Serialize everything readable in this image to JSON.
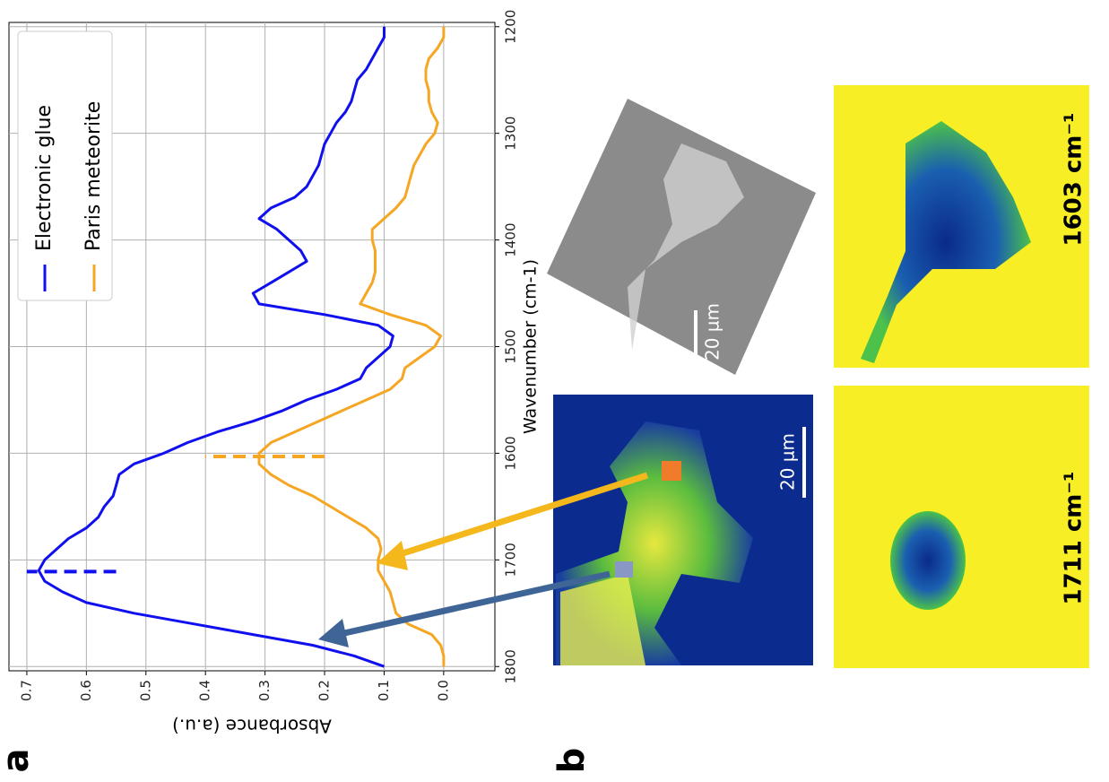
{
  "chart_data": {
    "type": "line",
    "xlabel": "Wavenumber (cm-1)",
    "ylabel": "Absorbance (a.u.)",
    "x": [
      1800,
      1790,
      1780,
      1770,
      1760,
      1750,
      1740,
      1730,
      1720,
      1710,
      1700,
      1690,
      1680,
      1670,
      1660,
      1650,
      1640,
      1630,
      1620,
      1610,
      1600,
      1590,
      1580,
      1570,
      1560,
      1550,
      1540,
      1530,
      1520,
      1510,
      1500,
      1490,
      1480,
      1470,
      1460,
      1450,
      1440,
      1430,
      1420,
      1410,
      1400,
      1390,
      1380,
      1370,
      1360,
      1350,
      1340,
      1330,
      1320,
      1310,
      1300,
      1290,
      1280,
      1270,
      1260,
      1250,
      1240,
      1230,
      1220,
      1210,
      1200
    ],
    "series": [
      {
        "name": "Electronic glue",
        "color": "#1010ee",
        "values": [
          0.1,
          0.15,
          0.22,
          0.32,
          0.42,
          0.52,
          0.6,
          0.64,
          0.67,
          0.68,
          0.67,
          0.65,
          0.63,
          0.6,
          0.58,
          0.57,
          0.555,
          0.55,
          0.545,
          0.52,
          0.47,
          0.43,
          0.38,
          0.32,
          0.27,
          0.23,
          0.18,
          0.14,
          0.13,
          0.11,
          0.09,
          0.085,
          0.11,
          0.2,
          0.31,
          0.32,
          0.29,
          0.26,
          0.23,
          0.24,
          0.26,
          0.28,
          0.31,
          0.29,
          0.25,
          0.23,
          0.22,
          0.21,
          0.205,
          0.2,
          0.19,
          0.18,
          0.165,
          0.155,
          0.15,
          0.145,
          0.13,
          0.12,
          0.11,
          0.1,
          0.1
        ]
      },
      {
        "name": "Paris meteorite",
        "color": "#f5a623",
        "values": [
          0.0,
          0.0,
          0.005,
          0.02,
          0.06,
          0.08,
          0.085,
          0.09,
          0.1,
          0.11,
          0.11,
          0.105,
          0.11,
          0.13,
          0.16,
          0.19,
          0.22,
          0.26,
          0.29,
          0.31,
          0.31,
          0.29,
          0.25,
          0.21,
          0.17,
          0.13,
          0.09,
          0.07,
          0.065,
          0.04,
          0.015,
          0.005,
          0.03,
          0.09,
          0.14,
          0.13,
          0.12,
          0.115,
          0.115,
          0.115,
          0.12,
          0.12,
          0.1,
          0.08,
          0.065,
          0.06,
          0.055,
          0.05,
          0.04,
          0.03,
          0.015,
          0.01,
          0.02,
          0.025,
          0.025,
          0.03,
          0.03,
          0.025,
          0.01,
          0.0,
          0.0
        ]
      }
    ],
    "markers": [
      {
        "x": 1711,
        "ymin": 0.55,
        "ymax": 0.7,
        "color": "#1010ee"
      },
      {
        "x": 1603,
        "ymin": 0.2,
        "ymax": 0.4,
        "color": "#f5a623"
      }
    ],
    "xlim": [
      1804,
      1196
    ],
    "ylim": [
      -0.086,
      0.73
    ],
    "xticks": [
      1200,
      1300,
      1400,
      1500,
      1600,
      1700,
      1800
    ],
    "yticks": [
      {
        "value": 0,
        "label": "0.0"
      },
      0.1,
      0.2,
      0.3,
      0.4,
      0.5,
      0.6,
      0.7
    ],
    "grid": true,
    "legend": "upper right",
    "rotation": -90
  },
  "figure": {
    "panel_a": "a",
    "panel_b": "b",
    "ir_map_scale": "20 µm",
    "sem_scale": "20 µm",
    "map_1711": "1711 cm⁻¹",
    "map_1603": "1603 cm⁻¹"
  }
}
